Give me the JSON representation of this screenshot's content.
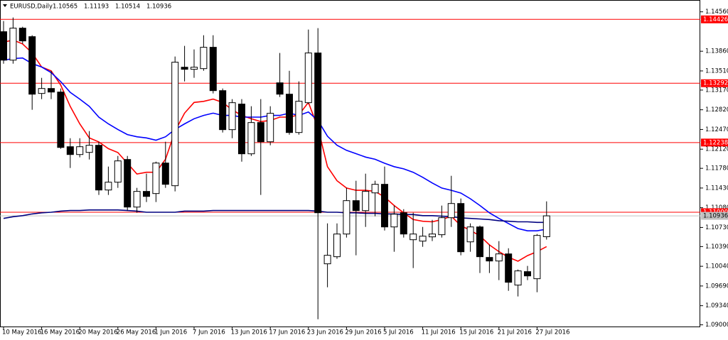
{
  "chart_data": {
    "type": "candlestick",
    "title": "EURUSD,Daily",
    "categories": [
      "10 May 2016",
      null,
      null,
      null,
      "16 May 2016",
      null,
      null,
      null,
      "20 May 2016",
      null,
      null,
      null,
      "26 May 2016",
      null,
      null,
      null,
      "1 Jun 2016",
      null,
      null,
      null,
      "7 Jun 2016",
      null,
      null,
      null,
      "13 Jun 2016",
      null,
      null,
      null,
      "17 Jun 2016",
      null,
      null,
      null,
      "23 Jun 2016",
      null,
      null,
      null,
      "29 Jun 2016",
      null,
      null,
      null,
      "5 Jul 2016",
      null,
      null,
      null,
      "11 Jul 2016",
      null,
      null,
      null,
      "15 Jul 2016",
      null,
      null,
      null,
      "21 Jul 2016",
      null,
      null,
      null,
      "27 Jul 2016",
      null
    ],
    "open": [
      1.14207,
      1.13702,
      1.1427,
      1.14119,
      1.1311,
      1.13198,
      1.13135,
      1.12164,
      1.12025,
      1.12063,
      1.12189,
      1.11395,
      1.11534,
      1.11937,
      1.11092,
      1.1137,
      1.11332,
      1.11874,
      1.11471,
      1.13576,
      1.13539,
      1.13551,
      1.1393,
      1.1316,
      1.12467,
      1.12921,
      1.12038,
      1.12593,
      1.12252,
      1.13299,
      1.13097,
      1.12416,
      1.12946,
      1.13829,
      1.10084,
      1.1021,
      1.10613,
      1.11206,
      1.11029,
      1.11344,
      1.11496,
      1.10739,
      1.10991,
      1.10512,
      1.10487,
      1.10563,
      1.10601,
      1.10903,
      1.11155,
      1.10474,
      1.10739,
      1.10197,
      1.10134,
      1.1026,
      1.09706,
      1.09945,
      1.09819,
      1.10565
    ],
    "high": [
      1.14396,
      1.14459,
      1.14295,
      1.14144,
      1.13387,
      1.13513,
      1.13198,
      1.12315,
      1.12315,
      1.12442,
      1.12252,
      1.11811,
      1.12,
      1.12,
      1.11433,
      1.11685,
      1.11899,
      1.12252,
      1.13766,
      1.13955,
      1.13892,
      1.14144,
      1.14144,
      1.13198,
      1.13009,
      1.13009,
      1.12883,
      1.13009,
      1.12883,
      1.13829,
      1.13513,
      1.13324,
      1.14245,
      1.1427,
      1.10802,
      1.10802,
      1.11433,
      1.11559,
      1.11685,
      1.11559,
      1.11811,
      1.11118,
      1.11054,
      1.10991,
      1.10739,
      1.10865,
      1.11118,
      1.11647,
      1.11244,
      1.10802,
      1.10764,
      1.10424,
      1.10487,
      1.1036,
      1.09983,
      1.10046,
      1.10613,
      1.11193
    ],
    "low": [
      1.13639,
      1.13639,
      1.13993,
      1.1282,
      1.13009,
      1.13009,
      1.12126,
      1.11786,
      1.11975,
      1.11937,
      1.11307,
      1.11307,
      1.11433,
      1.11029,
      1.10991,
      1.11181,
      1.11181,
      1.11433,
      1.1137,
      1.13324,
      1.13387,
      1.13513,
      1.1311,
      1.12416,
      1.12315,
      1.11899,
      1.12,
      1.11307,
      1.12189,
      1.13047,
      1.12378,
      1.12378,
      1.12921,
      1.091,
      1.09667,
      1.10172,
      1.1055,
      1.10235,
      1.10739,
      1.10928,
      1.10676,
      1.10298,
      1.1055,
      1.10008,
      1.10386,
      1.10487,
      1.1055,
      1.10739,
      1.10235,
      1.10298,
      1.0992,
      1.0992,
      1.09794,
      1.09604,
      1.09504,
      1.09794,
      1.09579,
      1.10514
    ],
    "close": [
      1.13702,
      1.1427,
      1.14043,
      1.13097,
      1.13198,
      1.13135,
      1.12151,
      1.12025,
      1.12164,
      1.12189,
      1.11395,
      1.11534,
      1.11912,
      1.11092,
      1.1137,
      1.11281,
      1.11874,
      1.11496,
      1.13665,
      1.13539,
      1.13576,
      1.1393,
      1.1316,
      1.12467,
      1.12946,
      1.12038,
      1.12593,
      1.12252,
      1.12757,
      1.13097,
      1.12416,
      1.12971,
      1.13829,
      1.10991,
      1.10235,
      1.10613,
      1.11206,
      1.11029,
      1.1137,
      1.11496,
      1.10739,
      1.10966,
      1.10613,
      1.10613,
      1.10575,
      1.10613,
      1.10903,
      1.11155,
      1.10298,
      1.10739,
      1.1021,
      1.10134,
      1.1026,
      1.09756,
      1.09958,
      1.09869,
      1.10588,
      1.10936
    ],
    "up_color": "#ffffff",
    "down_color": "#000000",
    "lines": [
      {
        "color": "#ff0000",
        "values": [
          1.1402,
          1.1406,
          1.1399,
          1.1383,
          1.1358,
          1.1351,
          1.1326,
          1.1288,
          1.1257,
          1.1232,
          1.1225,
          1.1213,
          1.1206,
          1.1187,
          1.1168,
          1.1171,
          1.1171,
          1.1194,
          1.1244,
          1.1276,
          1.1295,
          1.1297,
          1.1301,
          1.1295,
          1.1282,
          1.1272,
          1.1266,
          1.1261,
          1.1263,
          1.1269,
          1.1269,
          1.1273,
          1.1295,
          1.125,
          1.1181,
          1.1156,
          1.1143,
          1.1139,
          1.1139,
          1.1137,
          1.1127,
          1.1112,
          1.1099,
          1.1087,
          1.1084,
          1.1083,
          1.1087,
          1.1093,
          1.1076,
          1.1068,
          1.1058,
          1.1042,
          1.103,
          1.102,
          1.1013,
          1.1023,
          1.103,
          1.1039
        ]
      },
      {
        "color": "#0000ff",
        "values": [
          1.137,
          1.1373,
          1.1374,
          1.1364,
          1.1358,
          1.1348,
          1.1332,
          1.1313,
          1.1301,
          1.1288,
          1.1269,
          1.1257,
          1.1247,
          1.1238,
          1.1234,
          1.1232,
          1.1228,
          1.1234,
          1.1247,
          1.1257,
          1.1266,
          1.1272,
          1.1276,
          1.1272,
          1.1272,
          1.1269,
          1.1269,
          1.1269,
          1.1272,
          1.1272,
          1.1276,
          1.1272,
          1.1278,
          1.1263,
          1.1235,
          1.1219,
          1.121,
          1.1204,
          1.1198,
          1.1194,
          1.1187,
          1.1181,
          1.1177,
          1.1171,
          1.1162,
          1.1152,
          1.1143,
          1.1139,
          1.1134,
          1.1124,
          1.1112,
          1.1099,
          1.1089,
          1.108,
          1.1071,
          1.1067,
          1.1067,
          1.107
        ]
      },
      {
        "color": "#000080",
        "values": [
          1.1089,
          1.1092,
          1.1094,
          1.1097,
          1.1099,
          1.11,
          1.1102,
          1.1103,
          1.1103,
          1.1104,
          1.1104,
          1.1104,
          1.1104,
          1.1103,
          1.1102,
          1.11,
          1.11,
          1.11,
          1.11,
          1.1102,
          1.1102,
          1.1102,
          1.1103,
          1.1103,
          1.1103,
          1.1103,
          1.1103,
          1.1103,
          1.1103,
          1.1103,
          1.1103,
          1.1103,
          1.1103,
          1.1102,
          1.11,
          1.11,
          1.1099,
          1.1099,
          1.1098,
          1.1098,
          1.1097,
          1.1097,
          1.1096,
          1.1096,
          1.1094,
          1.1094,
          1.1093,
          1.1092,
          1.109,
          1.1089,
          1.1088,
          1.1087,
          1.1085,
          1.1084,
          1.1083,
          1.1083,
          1.1082,
          1.1082
        ]
      }
    ],
    "hlines": [
      {
        "value": 1.14426,
        "label": "1.14426"
      },
      {
        "value": 1.13292,
        "label": "1.13292"
      },
      {
        "value": 1.12238,
        "label": "1.12238"
      },
      {
        "value": 1.11,
        "label": "1.11000"
      }
    ],
    "hline_color": "#ff0000",
    "ylim": [
      1.0897,
      1.1477
    ],
    "yticks": [
      {
        "value": 1.1456,
        "label": "1.14560"
      },
      {
        "value": 1.1386,
        "label": "1.13860"
      },
      {
        "value": 1.1351,
        "label": "1.13510"
      },
      {
        "value": 1.1317,
        "label": "1.13170"
      },
      {
        "value": 1.1282,
        "label": "1.12820"
      },
      {
        "value": 1.1247,
        "label": "1.12470"
      },
      {
        "value": 1.1212,
        "label": "1.12120"
      },
      {
        "value": 1.1178,
        "label": "1.11780"
      },
      {
        "value": 1.1143,
        "label": "1.11430"
      },
      {
        "value": 1.1108,
        "label": "1.11080"
      },
      {
        "value": 1.1073,
        "label": "1.10730"
      },
      {
        "value": 1.1039,
        "label": "1.10390"
      },
      {
        "value": 1.1004,
        "label": "1.10040"
      },
      {
        "value": 1.0969,
        "label": "1.09690"
      },
      {
        "value": 1.0934,
        "label": "1.09340"
      },
      {
        "value": 1.09,
        "label": "1.09000"
      }
    ],
    "grid": false
  }
}
